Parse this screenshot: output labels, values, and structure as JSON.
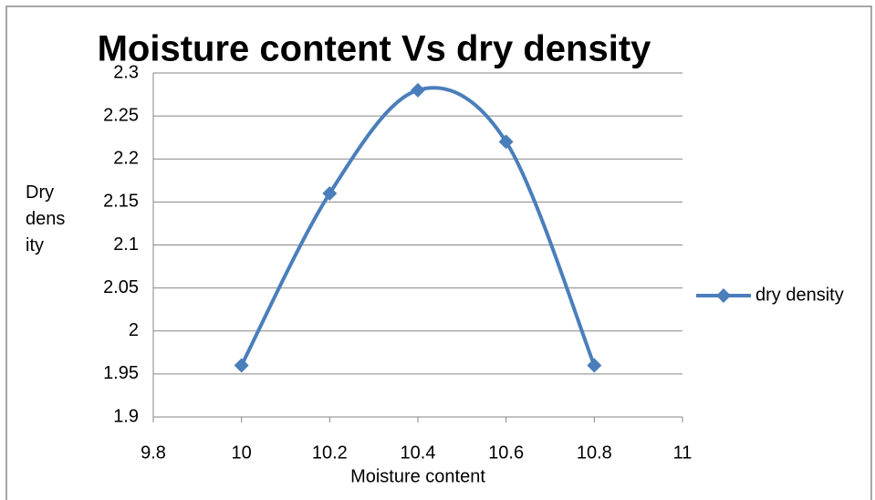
{
  "chart_data": {
    "type": "scatter",
    "title": "Moisture content Vs dry density",
    "x_label": "Moisture content",
    "y_label": "Dry density",
    "series": [
      {
        "name": "dry density",
        "color": "#4a7ebb",
        "x": [
          10,
          10.2,
          10.4,
          10.6,
          10.8
        ],
        "values": [
          1.96,
          2.16,
          2.28,
          2.22,
          1.96
        ]
      }
    ],
    "smooth": true,
    "xlim": [
      9.8,
      11
    ],
    "xticks": [
      9.8,
      10,
      10.2,
      10.4,
      10.6,
      10.8,
      11
    ],
    "ylim": [
      1.9,
      2.3
    ],
    "yticks": [
      1.9,
      1.95,
      2,
      2.05,
      2.1,
      2.15,
      2.2,
      2.25,
      2.3
    ],
    "grid": true,
    "legend": "right"
  }
}
